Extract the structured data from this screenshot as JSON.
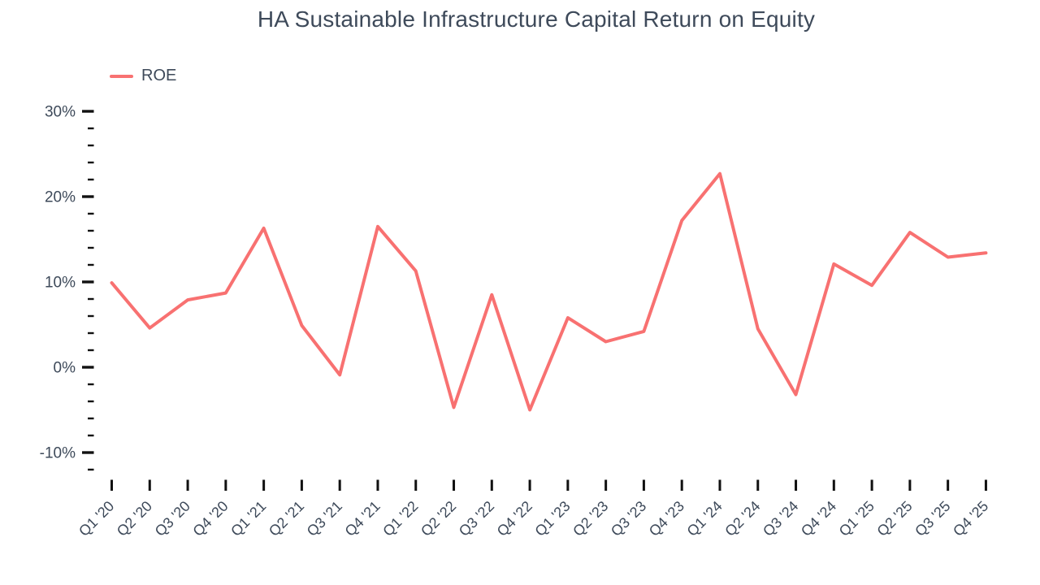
{
  "title": "HA Sustainable Infrastructure Capital Return on Equity",
  "legend": {
    "label": "ROE"
  },
  "colors": {
    "line": "#f87171",
    "text": "#3e4a5a",
    "tick": "#111111",
    "background": "#ffffff"
  },
  "chart_data": {
    "type": "line",
    "title": "HA Sustainable Infrastructure Capital Return on Equity",
    "categories": [
      "Q1 '20",
      "Q2 '20",
      "Q3 '20",
      "Q4 '20",
      "Q1 '21",
      "Q2 '21",
      "Q3 '21",
      "Q4 '21",
      "Q1 '22",
      "Q2 '22",
      "Q3 '22",
      "Q4 '22",
      "Q1 '23",
      "Q2 '23",
      "Q3 '23",
      "Q4 '23",
      "Q1 '24",
      "Q2 '24",
      "Q3 '24",
      "Q4 '24",
      "Q1 '25",
      "Q2 '25",
      "Q3 '25",
      "Q4 '25"
    ],
    "series": [
      {
        "name": "ROE",
        "color": "#f87171",
        "values": [
          9.9,
          4.6,
          7.9,
          8.7,
          16.3,
          4.9,
          -0.9,
          16.5,
          11.3,
          -4.7,
          8.5,
          -5.0,
          5.8,
          3.0,
          4.2,
          17.2,
          22.7,
          4.5,
          -3.2,
          12.1,
          9.6,
          15.8,
          12.9,
          13.4
        ]
      }
    ],
    "xlabel": "",
    "ylabel": "",
    "y_tick_format": "percent",
    "y_ticks_major": [
      30,
      20,
      10,
      0,
      -10
    ],
    "y_minor_step": 2,
    "ylim": [
      -12,
      30
    ],
    "grid": false,
    "axis_lines": false,
    "legend_position": "top-left",
    "x_label_rotation": -45
  }
}
